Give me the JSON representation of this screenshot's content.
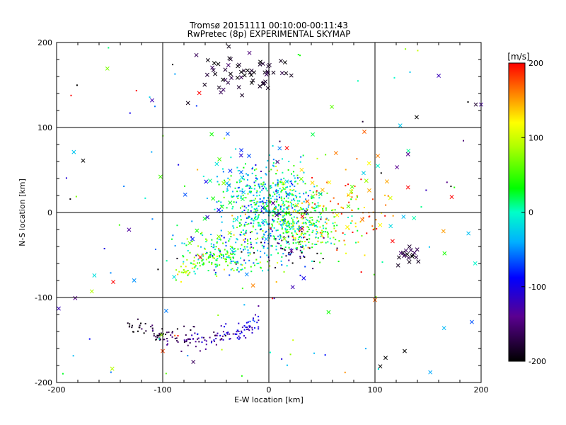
{
  "chart_data": {
    "type": "scatter",
    "title": "Tromsø 20151111 00:10:00-00:11:43",
    "subtitle": "RwPretec (8p) EXPERIMENTAL SKYMAP",
    "xlabel": "E-W location [km]",
    "ylabel": "N-S location [km]",
    "xlim": [
      -200,
      200
    ],
    "ylim": [
      -200,
      200
    ],
    "xticks": [
      -200,
      -100,
      0,
      100,
      200
    ],
    "yticks": [
      -200,
      -100,
      0,
      100,
      200
    ],
    "grid": true,
    "colorbar": {
      "label": "[m/s]",
      "min": -200,
      "max": 200,
      "ticks": [
        -200,
        -100,
        0,
        100,
        200
      ]
    },
    "markers": {
      "dot": "small points",
      "cross": "x markers"
    },
    "clusters": [
      {
        "cx": 0,
        "cy": 10,
        "sx": 22,
        "sy": 25,
        "n": 520,
        "v": -10,
        "vs": 45,
        "marker": "dot"
      },
      {
        "cx": 35,
        "cy": -12,
        "sx": 18,
        "sy": 18,
        "n": 260,
        "v": 50,
        "vs": 55,
        "marker": "dot"
      },
      {
        "cx": -40,
        "cy": -45,
        "sx": 25,
        "sy": 18,
        "n": 200,
        "v": 0,
        "vs": 60,
        "marker": "dot"
      },
      {
        "cx": 80,
        "cy": -5,
        "sx": 20,
        "sy": 25,
        "n": 70,
        "v": 170,
        "vs": 30,
        "marker": "dot"
      },
      {
        "cx": 20,
        "cy": -45,
        "sx": 18,
        "sy": 15,
        "n": 50,
        "v": -150,
        "vs": 40,
        "marker": "dot"
      },
      {
        "cx": -20,
        "cy": 165,
        "sx": 20,
        "sy": 12,
        "n": 60,
        "v": -185,
        "vs": 15,
        "marker": "cross"
      },
      {
        "cx": 132,
        "cy": -52,
        "sx": 6,
        "sy": 6,
        "n": 18,
        "v": -165,
        "vs": 20,
        "marker": "cross"
      },
      {
        "cx": -20,
        "cy": 30,
        "sx": 40,
        "sy": 35,
        "n": 45,
        "v": -40,
        "vs": 70,
        "marker": "cross"
      },
      {
        "cx": 70,
        "cy": 20,
        "sx": 40,
        "sy": 30,
        "n": 35,
        "v": 120,
        "vs": 70,
        "marker": "cross"
      }
    ],
    "arcs": [
      {
        "x0": -130,
        "x1": -10,
        "a": 0.0058,
        "h": -70,
        "k": -150,
        "n": 170,
        "jitter": 5,
        "v0": -200,
        "v1": -95,
        "vs": 20,
        "marker": "dot"
      },
      {
        "x0": -90,
        "x1": -30,
        "a": -0.0075,
        "h": -30,
        "k": -50,
        "n": 90,
        "jitter": 6,
        "v0": 110,
        "v1": 20,
        "vs": 30,
        "marker": "dot"
      }
    ],
    "scatter_bg": {
      "n": 130,
      "xlim": [
        -195,
        195
      ],
      "ylim": [
        -195,
        195
      ],
      "vs": 130
    },
    "extra_points": [
      {
        "x": 195,
        "y": 127,
        "v": -180,
        "marker": "cross"
      },
      {
        "x": 200,
        "y": 127,
        "v": -130,
        "marker": "cross"
      },
      {
        "x": 105,
        "y": -181,
        "v": -200,
        "marker": "cross"
      },
      {
        "x": 110,
        "y": -171,
        "v": -200,
        "marker": "cross"
      },
      {
        "x": 128,
        "y": -163,
        "v": -200,
        "marker": "cross"
      },
      {
        "x": -175,
        "y": 61,
        "v": -200,
        "marker": "cross"
      },
      {
        "x": -198,
        "y": -113,
        "v": -120,
        "marker": "cross"
      },
      {
        "x": -100,
        "y": -163,
        "v": 180,
        "marker": "cross"
      },
      {
        "x": 90,
        "y": 95,
        "v": 170,
        "marker": "cross"
      },
      {
        "x": 100,
        "y": -103,
        "v": 170,
        "marker": "cross"
      }
    ]
  }
}
